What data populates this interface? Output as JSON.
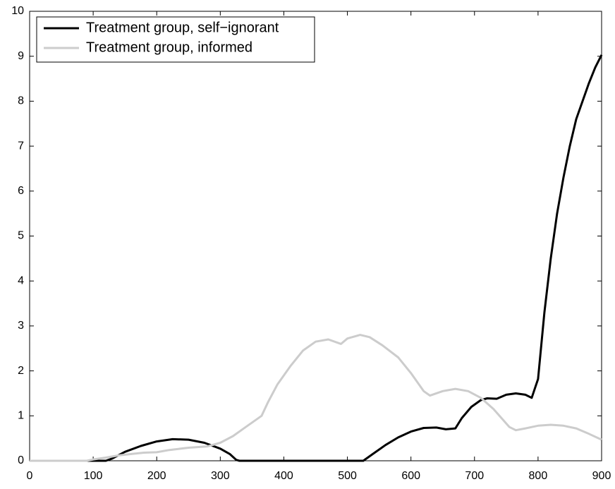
{
  "chart_data": {
    "type": "line",
    "xlim": [
      0,
      900
    ],
    "xticks": [
      0,
      100,
      200,
      300,
      400,
      500,
      600,
      700,
      800,
      900
    ],
    "ylim": [
      0,
      10
    ],
    "yticks": [
      0,
      1,
      2,
      3,
      4,
      5,
      6,
      7,
      8,
      9,
      10
    ],
    "legend": "upper left",
    "series": [
      {
        "name": "Treatment group, self−ignorant",
        "color": "#000000",
        "x": [
          0,
          100,
          120,
          130,
          150,
          175,
          200,
          225,
          250,
          275,
          300,
          315,
          325,
          330,
          400,
          500,
          525,
          540,
          560,
          580,
          600,
          620,
          640,
          655,
          670,
          680,
          695,
          710,
          720,
          735,
          750,
          765,
          780,
          790,
          800,
          810,
          820,
          830,
          840,
          850,
          860,
          870,
          880,
          890,
          900
        ],
        "values": [
          0,
          0,
          0,
          0.05,
          0.2,
          0.33,
          0.43,
          0.48,
          0.47,
          0.4,
          0.27,
          0.15,
          0.02,
          0,
          0,
          0,
          0,
          0.15,
          0.35,
          0.52,
          0.65,
          0.73,
          0.74,
          0.7,
          0.72,
          0.95,
          1.2,
          1.35,
          1.39,
          1.38,
          1.47,
          1.5,
          1.47,
          1.4,
          1.82,
          3.3,
          4.5,
          5.5,
          6.3,
          7.0,
          7.6,
          8.0,
          8.4,
          8.75,
          9.03
        ]
      },
      {
        "name": "Treatment group, informed",
        "color": "#cccccc",
        "x": [
          0,
          90,
          100,
          120,
          140,
          160,
          180,
          200,
          220,
          250,
          280,
          300,
          320,
          340,
          355,
          365,
          375,
          390,
          410,
          430,
          450,
          470,
          490,
          500,
          520,
          535,
          555,
          580,
          600,
          620,
          630,
          650,
          670,
          690,
          710,
          730,
          755,
          765,
          780,
          800,
          820,
          840,
          860,
          880,
          900
        ],
        "values": [
          0,
          0,
          0.03,
          0.07,
          0.12,
          0.15,
          0.18,
          0.19,
          0.24,
          0.29,
          0.32,
          0.4,
          0.55,
          0.75,
          0.9,
          1.0,
          1.3,
          1.7,
          2.1,
          2.45,
          2.65,
          2.7,
          2.6,
          2.72,
          2.8,
          2.75,
          2.57,
          2.3,
          1.95,
          1.55,
          1.45,
          1.55,
          1.6,
          1.55,
          1.4,
          1.15,
          0.75,
          0.68,
          0.72,
          0.78,
          0.8,
          0.78,
          0.72,
          0.6,
          0.47
        ]
      }
    ]
  }
}
